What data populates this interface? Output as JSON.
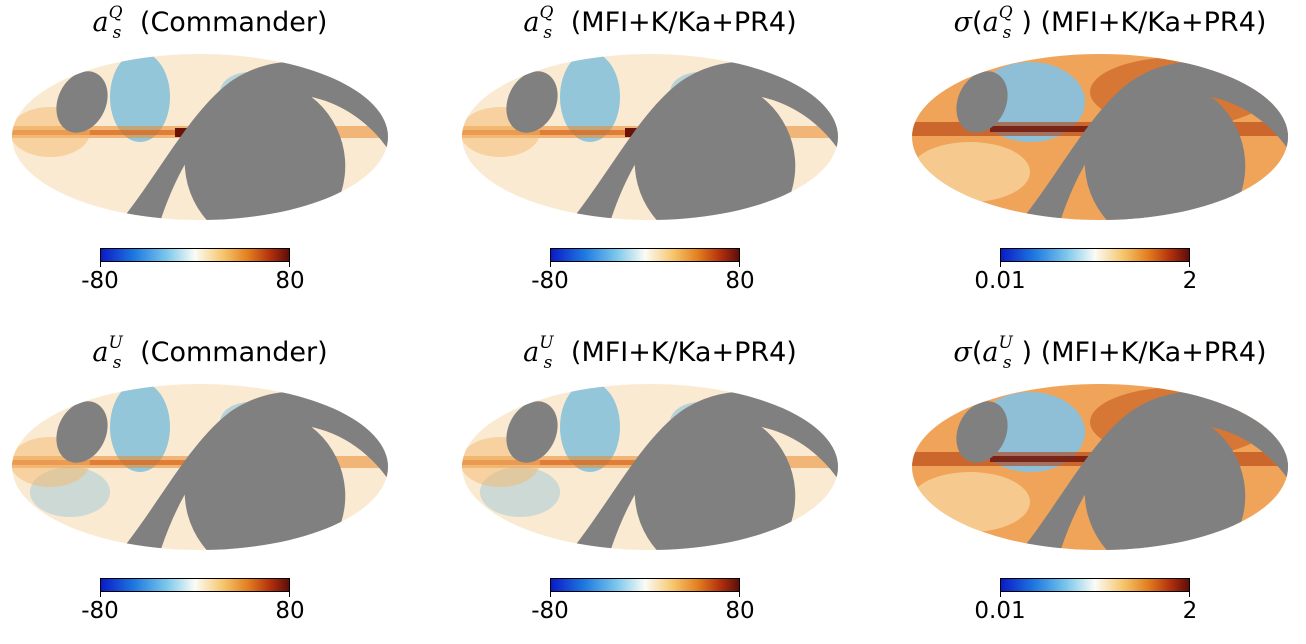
{
  "panels": [
    {
      "sym": "a",
      "pol": "Q",
      "sigma": false,
      "label": "(Commander)",
      "cmin": "-80",
      "cmax": "80",
      "scale": "diverging"
    },
    {
      "sym": "a",
      "pol": "Q",
      "sigma": false,
      "label": "(MFI+K/Ka+PR4)",
      "cmin": "-80",
      "cmax": "80",
      "scale": "diverging"
    },
    {
      "sym": "a",
      "pol": "Q",
      "sigma": true,
      "label": "(MFI+K/Ka+PR4)",
      "cmin": "0.01",
      "cmax": "2",
      "scale": "sequential"
    },
    {
      "sym": "a",
      "pol": "U",
      "sigma": false,
      "label": "(Commander)",
      "cmin": "-80",
      "cmax": "80",
      "scale": "diverging"
    },
    {
      "sym": "a",
      "pol": "U",
      "sigma": false,
      "label": "(MFI+K/Ka+PR4)",
      "cmin": "-80",
      "cmax": "80",
      "scale": "diverging"
    },
    {
      "sym": "a",
      "pol": "U",
      "sigma": true,
      "label": "(MFI+K/Ka+PR4)",
      "cmin": "0.01",
      "cmax": "2",
      "scale": "sequential"
    }
  ],
  "colors": {
    "mask": "#808080",
    "blue": "#3fa7e0",
    "orange": "#e98a2c",
    "darkred": "#6b1208",
    "cream": "#fbead2"
  }
}
